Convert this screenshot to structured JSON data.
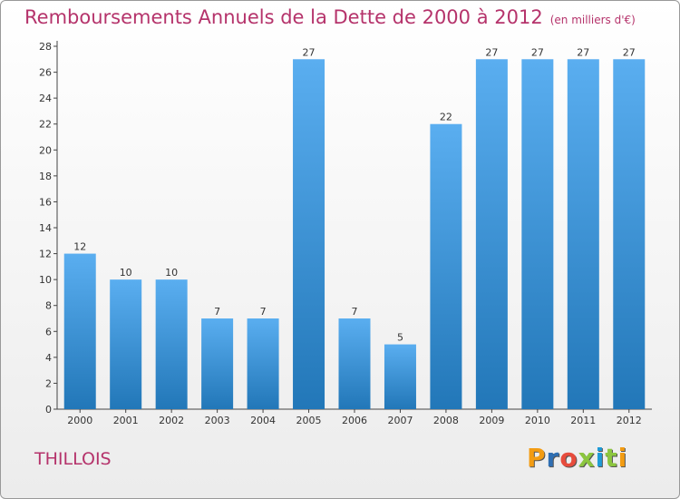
{
  "header": {
    "title": "Remboursements Annuels de la Dette de 2000 à 2012",
    "unit": "(en milliers d'€)"
  },
  "commune": "THILLOIS",
  "logo": {
    "text": "Proxiti"
  },
  "colors": {
    "title": "#b5336b",
    "bar_top": "#5aaef0",
    "bar_bottom": "#2277b8"
  },
  "chart_data": {
    "type": "bar",
    "title": "Remboursements Annuels de la Dette de 2000 à 2012",
    "xlabel": "",
    "ylabel": "",
    "categories": [
      "2000",
      "2001",
      "2002",
      "2003",
      "2004",
      "2005",
      "2006",
      "2007",
      "2008",
      "2009",
      "2010",
      "2011",
      "2012"
    ],
    "values": [
      12,
      10,
      10,
      7,
      7,
      27,
      7,
      5,
      22,
      27,
      27,
      27,
      27
    ],
    "ylim": [
      0,
      28
    ],
    "yticks": [
      0,
      2,
      4,
      6,
      8,
      10,
      12,
      14,
      16,
      18,
      20,
      22,
      24,
      26,
      28
    ],
    "grid": false,
    "legend": "none"
  }
}
